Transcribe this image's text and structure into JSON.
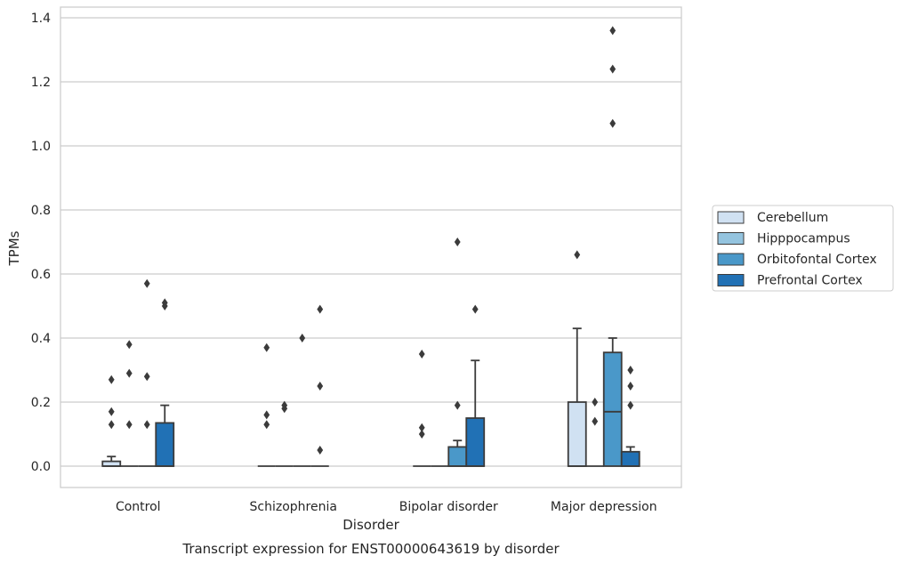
{
  "chart_data": {
    "type": "box",
    "caption": "Transcript expression for ENST00000643619 by disorder",
    "xlabel": "Disorder",
    "ylabel": "TPMs",
    "ylim": [
      -0.065,
      1.43
    ],
    "yticks": [
      "0.0",
      "0.2",
      "0.4",
      "0.6",
      "0.8",
      "1.0",
      "1.2",
      "1.4"
    ],
    "categories": [
      "Control",
      "Schizophrenia",
      "Bipolar disorder",
      "Major depression"
    ],
    "grid": "horizontal",
    "legend_placement": "right",
    "series": [
      {
        "name": "Cerebellum",
        "color": "#d0e1f2",
        "boxes": [
          {
            "q1": 0.0,
            "median": 0.0,
            "q3": 0.015,
            "whisker_low": 0.0,
            "whisker_high": 0.03,
            "outliers": [
              0.13,
              0.17,
              0.27
            ]
          },
          {
            "q1": 0.0,
            "median": 0.0,
            "q3": 0.0,
            "whisker_low": 0.0,
            "whisker_high": 0.0,
            "outliers": [
              0.13,
              0.16,
              0.37
            ]
          },
          {
            "q1": 0.0,
            "median": 0.0,
            "q3": 0.0,
            "whisker_low": 0.0,
            "whisker_high": 0.0,
            "outliers": [
              0.1,
              0.12,
              0.35
            ]
          },
          {
            "q1": 0.0,
            "median": 0.0,
            "q3": 0.2,
            "whisker_low": 0.0,
            "whisker_high": 0.43,
            "outliers": [
              0.66
            ]
          }
        ]
      },
      {
        "name": "Hipppocampus",
        "color": "#94c4df",
        "boxes": [
          {
            "q1": 0.0,
            "median": 0.0,
            "q3": 0.0,
            "whisker_low": 0.0,
            "whisker_high": 0.0,
            "outliers": [
              0.13,
              0.29,
              0.38
            ]
          },
          {
            "q1": 0.0,
            "median": 0.0,
            "q3": 0.0,
            "whisker_low": 0.0,
            "whisker_high": 0.0,
            "outliers": [
              0.18,
              0.19
            ]
          },
          {
            "q1": 0.0,
            "median": 0.0,
            "q3": 0.0,
            "whisker_low": 0.0,
            "whisker_high": 0.0,
            "outliers": []
          },
          {
            "q1": 0.0,
            "median": 0.0,
            "q3": 0.0,
            "whisker_low": 0.0,
            "whisker_high": 0.0,
            "outliers": [
              0.14,
              0.2
            ]
          }
        ]
      },
      {
        "name": "Orbitofontal Cortex",
        "color": "#4a98c9",
        "boxes": [
          {
            "q1": 0.0,
            "median": 0.0,
            "q3": 0.0,
            "whisker_low": 0.0,
            "whisker_high": 0.0,
            "outliers": [
              0.13,
              0.28,
              0.57
            ]
          },
          {
            "q1": 0.0,
            "median": 0.0,
            "q3": 0.0,
            "whisker_low": 0.0,
            "whisker_high": 0.0,
            "outliers": [
              0.4
            ]
          },
          {
            "q1": 0.0,
            "median": 0.0,
            "q3": 0.06,
            "whisker_low": 0.0,
            "whisker_high": 0.08,
            "outliers": [
              0.19,
              0.7
            ]
          },
          {
            "q1": 0.0,
            "median": 0.17,
            "q3": 0.355,
            "whisker_low": 0.0,
            "whisker_high": 0.4,
            "outliers": [
              1.07,
              1.24,
              1.36
            ]
          }
        ]
      },
      {
        "name": "Prefrontal Cortex",
        "color": "#2171b5",
        "boxes": [
          {
            "q1": 0.0,
            "median": 0.0,
            "q3": 0.135,
            "whisker_low": 0.0,
            "whisker_high": 0.19,
            "outliers": [
              0.5,
              0.51
            ]
          },
          {
            "q1": 0.0,
            "median": 0.0,
            "q3": 0.0,
            "whisker_low": 0.0,
            "whisker_high": 0.0,
            "outliers": [
              0.05,
              0.25,
              0.49
            ]
          },
          {
            "q1": 0.0,
            "median": 0.0,
            "q3": 0.15,
            "whisker_low": 0.0,
            "whisker_high": 0.33,
            "outliers": [
              0.49
            ]
          },
          {
            "q1": 0.0,
            "median": 0.0,
            "q3": 0.045,
            "whisker_low": 0.0,
            "whisker_high": 0.06,
            "outliers": [
              0.19,
              0.25,
              0.3
            ]
          }
        ]
      }
    ]
  }
}
